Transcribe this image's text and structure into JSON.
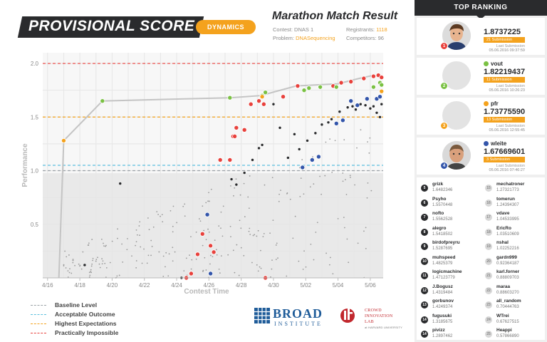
{
  "header": {
    "title": "PROVISIONAL SCORE",
    "pill": "DYNAMICS",
    "subtitle": "Marathon Match Result",
    "contest_label": "Contest:",
    "contest_value": "DNAS 1",
    "problem_label": "Problem:",
    "problem_value": "DNASequencing",
    "registrants_label": "Registrants:",
    "registrants_value": "1118",
    "competitors_label": "Competitors:",
    "competitors_value": "96"
  },
  "colors": {
    "baseline": "#9aa0a6",
    "acceptable": "#5bc0de",
    "highest": "#f4a21d",
    "impossible": "#e8413c",
    "green": "#7ac143",
    "orange": "#f4a21d",
    "blue": "#3355aa",
    "dark": "#2a2b2d"
  },
  "chart_data": {
    "type": "scatter",
    "xlabel": "Contest Time",
    "ylabel": "Performance",
    "x_ticks": [
      "4/16",
      "4/18",
      "4/20",
      "4/22",
      "4/24",
      "4/26",
      "4/28",
      "4/30",
      "5/02",
      "5/04",
      "5/06"
    ],
    "y_ticks": [
      "0.5",
      "1.0",
      "1.5",
      "2.0"
    ],
    "x_range_days": [
      15.7,
      36.8
    ],
    "ylim": [
      0,
      2.1
    ],
    "grid": true,
    "reference_lines": [
      {
        "name": "Baseline Level",
        "value": 1.0
      },
      {
        "name": "Acceptable Outcome",
        "value": 1.05
      },
      {
        "name": "Highest Expectations",
        "value": 1.5
      },
      {
        "name": "Practically Impossible",
        "value": 2.0
      }
    ],
    "leader_line": [
      [
        16.7,
        0.0
      ],
      [
        17.0,
        1.28
      ],
      [
        19.4,
        1.65
      ],
      [
        27.3,
        1.68
      ],
      [
        29.2,
        1.7
      ],
      [
        31.4,
        1.79
      ],
      [
        34.0,
        1.81
      ],
      [
        35.3,
        1.86
      ],
      [
        36.2,
        1.89
      ],
      [
        36.7,
        1.87
      ]
    ],
    "series": [
      {
        "name": "grizk",
        "color": "#e8413c",
        "points": [
          [
            24.6,
            0.0
          ],
          [
            24.9,
            0.04
          ],
          [
            25.3,
            0.22
          ],
          [
            25.6,
            0.41
          ],
          [
            26.1,
            0.3
          ],
          [
            26.3,
            0.24
          ],
          [
            26.7,
            1.1
          ],
          [
            27.3,
            1.1
          ],
          [
            27.5,
            1.32
          ],
          [
            27.6,
            1.32
          ],
          [
            27.7,
            1.4
          ],
          [
            28.2,
            1.38
          ],
          [
            28.6,
            1.62
          ],
          [
            29.1,
            1.65
          ],
          [
            29.4,
            1.62
          ],
          [
            29.5,
            0.0
          ],
          [
            30.6,
            1.69
          ],
          [
            31.5,
            1.79
          ],
          [
            33.7,
            1.79
          ],
          [
            34.2,
            1.82
          ],
          [
            34.8,
            1.83
          ],
          [
            35.6,
            1.86
          ],
          [
            36.2,
            1.88
          ],
          [
            36.5,
            1.89
          ],
          [
            36.7,
            1.87
          ]
        ]
      },
      {
        "name": "vout",
        "color": "#7ac143",
        "points": [
          [
            17.0,
            1.28
          ],
          [
            19.4,
            1.65
          ],
          [
            27.3,
            1.68
          ],
          [
            29.3,
            1.7
          ],
          [
            29.5,
            1.73
          ],
          [
            31.9,
            1.75
          ],
          [
            32.2,
            1.77
          ],
          [
            32.9,
            1.78
          ],
          [
            33.9,
            1.78
          ],
          [
            36.2,
            1.78
          ],
          [
            36.6,
            1.82
          ],
          [
            36.7,
            1.8
          ]
        ]
      },
      {
        "name": "pfr",
        "color": "#f4a21d",
        "points": [
          [
            17.0,
            1.28
          ],
          [
            29.3,
            1.69
          ],
          [
            36.7,
            1.74
          ]
        ]
      },
      {
        "name": "wleite",
        "color": "#3355aa",
        "points": [
          [
            25.9,
            0.59
          ],
          [
            26.1,
            0.04
          ],
          [
            31.8,
            1.03
          ],
          [
            32.4,
            1.1
          ],
          [
            32.8,
            1.13
          ],
          [
            33.9,
            1.44
          ],
          [
            34.3,
            1.47
          ],
          [
            34.8,
            1.65
          ],
          [
            35.2,
            1.61
          ],
          [
            35.8,
            1.67
          ],
          [
            36.4,
            1.67
          ],
          [
            36.6,
            1.69
          ]
        ]
      },
      {
        "name": "others",
        "color": "#2a2b2d",
        "points": [
          [
            18.3,
            0.12
          ],
          [
            20.5,
            0.88
          ],
          [
            24.3,
            0.0
          ],
          [
            27.4,
            0.92
          ],
          [
            27.7,
            0.87
          ],
          [
            28.2,
            0.98
          ],
          [
            28.7,
            1.1
          ],
          [
            29.1,
            1.21
          ],
          [
            29.3,
            1.24
          ],
          [
            30.0,
            1.62
          ],
          [
            30.4,
            1.4
          ],
          [
            30.9,
            1.12
          ],
          [
            31.3,
            1.34
          ],
          [
            31.6,
            1.2
          ],
          [
            32.1,
            1.28
          ],
          [
            32.6,
            1.35
          ],
          [
            33.0,
            1.43
          ],
          [
            33.4,
            1.45
          ],
          [
            33.6,
            1.48
          ],
          [
            34.1,
            1.55
          ],
          [
            34.6,
            1.59
          ],
          [
            34.9,
            1.6
          ],
          [
            35.1,
            1.57
          ],
          [
            35.4,
            1.62
          ],
          [
            35.7,
            1.61
          ],
          [
            36.0,
            1.58
          ],
          [
            36.2,
            1.6
          ],
          [
            36.4,
            1.54
          ],
          [
            36.6,
            1.5
          ],
          [
            36.7,
            1.62
          ]
        ]
      }
    ]
  },
  "legend": [
    {
      "label": "Baseline Level",
      "color": "#9aa0a6"
    },
    {
      "label": "Acceptable Outcome",
      "color": "#5bc0de"
    },
    {
      "label": "Highest Expectations",
      "color": "#f4a21d"
    },
    {
      "label": "Practically Impossible",
      "color": "#e8413c"
    }
  ],
  "logos": {
    "broad_word": "BROAD",
    "broad_sub": "INSTITUTE",
    "cil_line1": "CROWD",
    "cil_line2": "INNOVATION",
    "cil_line3": "LAB",
    "cil_sub": "at HARVARD UNIVERSITY"
  },
  "ranking": {
    "title": "TOP RANKING",
    "top": [
      {
        "rank": "1",
        "handle": "",
        "dot": "#e8413c",
        "badge": "#e8413c",
        "score": "1.8737225",
        "submissions": "21 Submission",
        "last": "Last Submission",
        "date": "05.06.2016  09:37:59",
        "photo": "young-man"
      },
      {
        "rank": "2",
        "handle": "vout",
        "dot": "#7ac143",
        "badge": "#7ac143",
        "score": "1.82219437",
        "submissions": "11 Submission",
        "last": "Last Submission",
        "date": "05.06.2016  10:26:23",
        "photo": "none"
      },
      {
        "rank": "3",
        "handle": "pfr",
        "dot": "#f4a21d",
        "badge": "#f4a21d",
        "score": "1.73775590",
        "submissions": "13 Submission",
        "last": "Last Submission",
        "date": "05.06.2016  12:55:45",
        "photo": "none"
      },
      {
        "rank": "4",
        "handle": "wleite",
        "dot": "#3355aa",
        "badge": "#3355aa",
        "score": "1.67669601",
        "submissions": "3 Submission",
        "last": "Last Submission",
        "date": "05.06.2016  07:46:27",
        "photo": "man"
      }
    ],
    "list": [
      {
        "rank": "5",
        "name": "grizk",
        "score": "1.6482346"
      },
      {
        "rank": "15",
        "name": "mechatroner",
        "score": "1.27321773"
      },
      {
        "rank": "6",
        "name": "Psyho",
        "score": "1.5570448"
      },
      {
        "rank": "16",
        "name": "tomerun",
        "score": "1.24394307"
      },
      {
        "rank": "7",
        "name": "nofto",
        "score": "1.5562528"
      },
      {
        "rank": "17",
        "name": "vdave",
        "score": "1.04533995"
      },
      {
        "rank": "8",
        "name": "alegro",
        "score": "1.5418502"
      },
      {
        "rank": "18",
        "name": "EricRo",
        "score": "1.03510609"
      },
      {
        "rank": "9",
        "name": "birdofpreyru",
        "score": "1.5287695"
      },
      {
        "rank": "19",
        "name": "nshal",
        "score": "1.02252216"
      },
      {
        "rank": "10",
        "name": "muhspeed",
        "score": "1.4825379"
      },
      {
        "rank": "20",
        "name": "gardn999",
        "score": "0.92364187"
      },
      {
        "rank": "11",
        "name": "logicmachine",
        "score": "1.47123779"
      },
      {
        "rank": "21",
        "name": "karl.forner",
        "score": "0.88809703"
      },
      {
        "rank": "12",
        "name": "J.Bogusz",
        "score": "1.4319484"
      },
      {
        "rank": "22",
        "name": "maraa",
        "score": "0.88603270"
      },
      {
        "rank": "13",
        "name": "gorbunov",
        "score": "1.4249374"
      },
      {
        "rank": "23",
        "name": "all_random",
        "score": "0.70444763"
      },
      {
        "rank": "14",
        "name": "fugusuki",
        "score": "1.3185675"
      },
      {
        "rank": "24",
        "name": "WTrei",
        "score": "0.67627515"
      },
      {
        "rank": "14",
        "name": "pivizz",
        "score": "1.2897462"
      },
      {
        "rank": "25",
        "name": "Heappi",
        "score": "0.57866890"
      }
    ]
  }
}
